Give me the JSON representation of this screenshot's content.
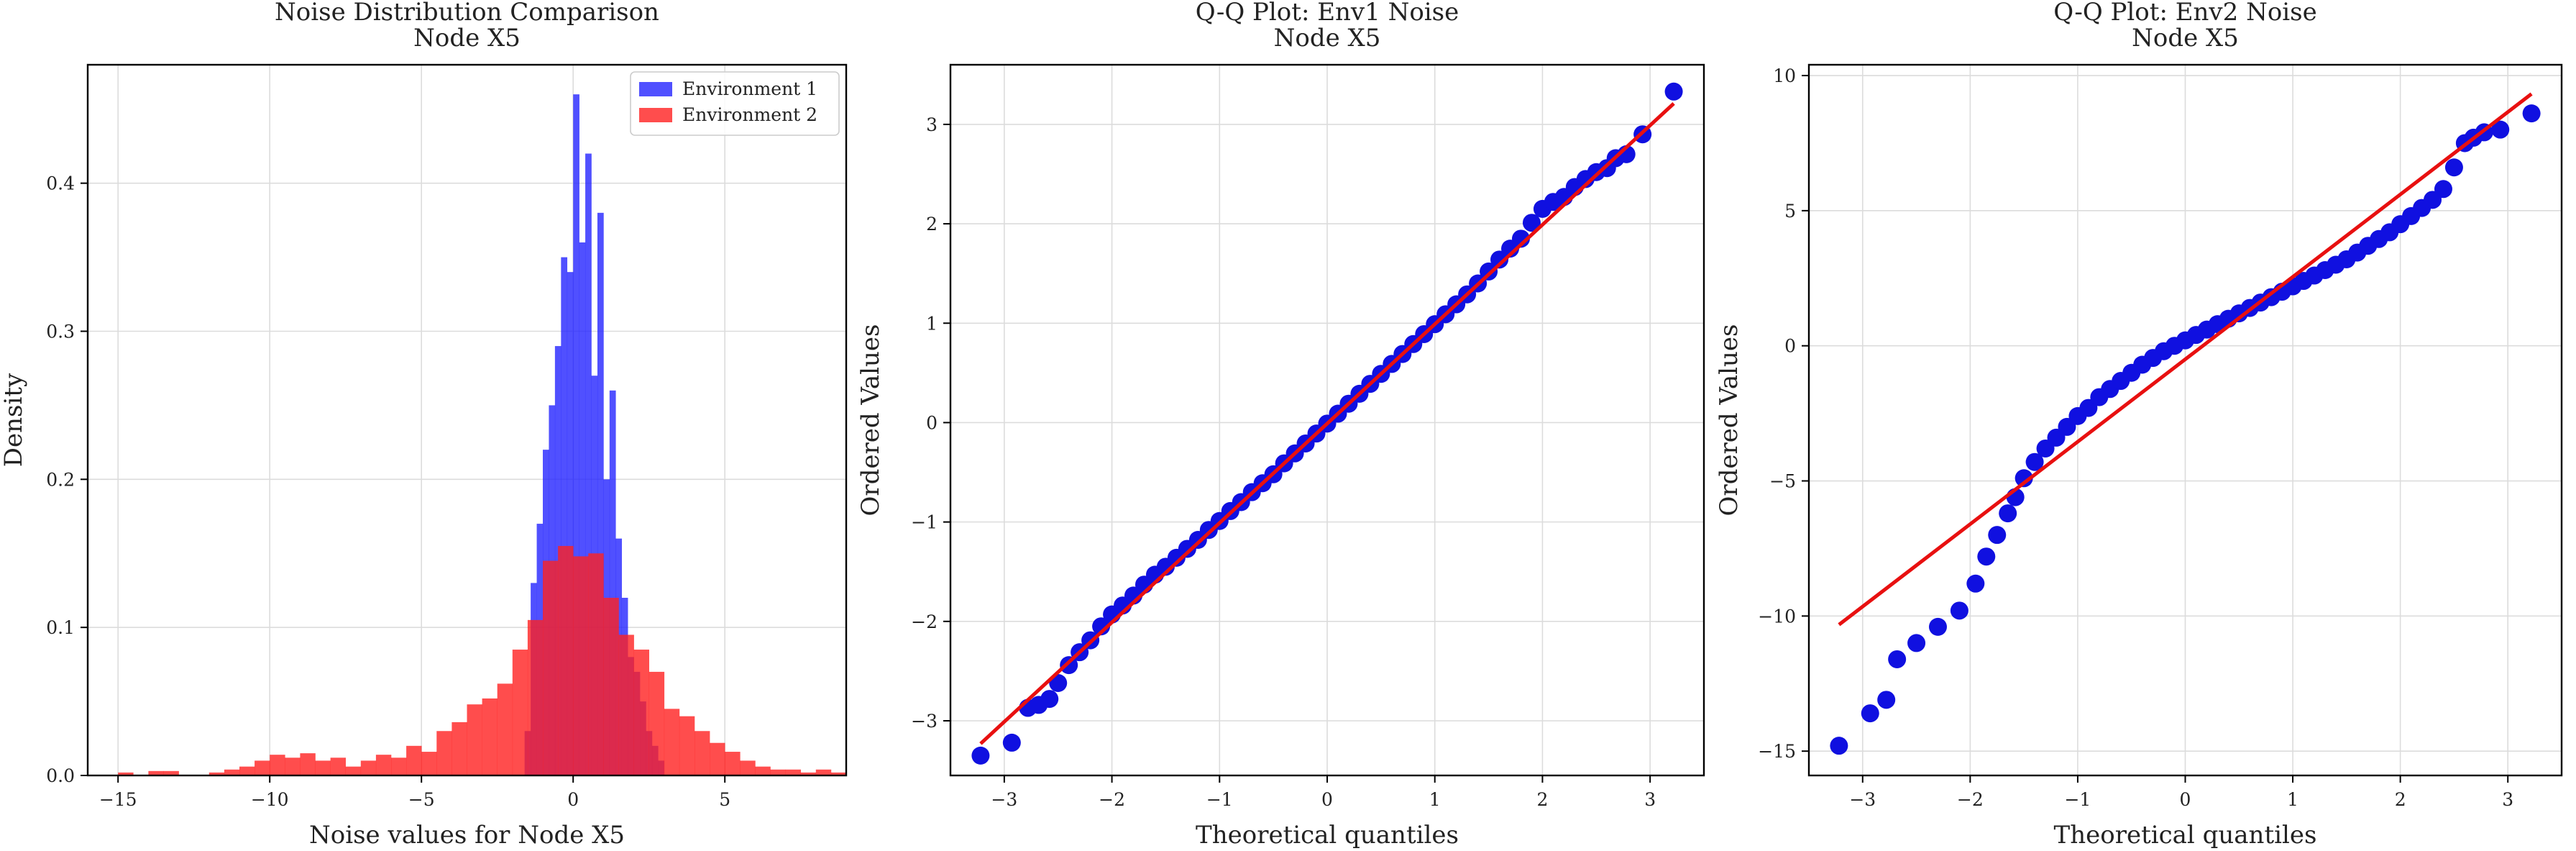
{
  "chart_data": [
    {
      "type": "bar",
      "title": "Noise Distribution Comparison\nNode X5",
      "xlabel": "Noise values for Node X5",
      "ylabel": "Density",
      "xlim": [
        -16,
        9
      ],
      "ylim": [
        0,
        0.48
      ],
      "xticks": [
        -15,
        -10,
        -5,
        0,
        5
      ],
      "yticks": [
        0.0,
        0.1,
        0.2,
        0.3,
        0.4
      ],
      "grid": true,
      "legend_position": "upper-right",
      "series": [
        {
          "name": "Environment 1",
          "color": "#2424ff",
          "bin_edges": [
            -1.6,
            -1.4,
            -1.2,
            -1.0,
            -0.8,
            -0.6,
            -0.4,
            -0.2,
            0.0,
            0.2,
            0.4,
            0.6,
            0.8,
            1.0,
            1.2,
            1.4,
            1.6,
            1.8,
            2.0,
            2.2,
            2.4,
            2.6,
            2.8,
            3.0
          ],
          "values": [
            0.03,
            0.13,
            0.17,
            0.22,
            0.25,
            0.29,
            0.35,
            0.34,
            0.46,
            0.36,
            0.42,
            0.27,
            0.38,
            0.2,
            0.26,
            0.16,
            0.12,
            0.08,
            0.07,
            0.05,
            0.03,
            0.02,
            0.01
          ]
        },
        {
          "name": "Environment 2",
          "color": "#ff2020",
          "bin_edges": [
            -15.0,
            -14.5,
            -14.0,
            -13.5,
            -13.0,
            -12.5,
            -12.0,
            -11.5,
            -11.0,
            -10.5,
            -10.0,
            -9.5,
            -9.0,
            -8.5,
            -8.0,
            -7.5,
            -7.0,
            -6.5,
            -6.0,
            -5.5,
            -5.0,
            -4.5,
            -4.0,
            -3.5,
            -3.0,
            -2.5,
            -2.0,
            -1.5,
            -1.0,
            -0.5,
            0.0,
            0.5,
            1.0,
            1.5,
            2.0,
            2.5,
            3.0,
            3.5,
            4.0,
            4.5,
            5.0,
            5.5,
            6.0,
            6.5,
            7.0,
            7.5,
            8.0,
            8.5
          ],
          "values": [
            0.002,
            0.0,
            0.003,
            0.003,
            0.0,
            0.0,
            0.002,
            0.004,
            0.006,
            0.01,
            0.014,
            0.012,
            0.015,
            0.01,
            0.012,
            0.006,
            0.01,
            0.014,
            0.012,
            0.02,
            0.016,
            0.03,
            0.036,
            0.048,
            0.052,
            0.062,
            0.085,
            0.105,
            0.145,
            0.155,
            0.148,
            0.15,
            0.12,
            0.095,
            0.085,
            0.07,
            0.045,
            0.04,
            0.03,
            0.022,
            0.016,
            0.01,
            0.006,
            0.004,
            0.004,
            0.002,
            0.004,
            0.002
          ]
        }
      ]
    },
    {
      "type": "scatter",
      "title": "Q-Q Plot: Env1 Noise\nNode X5",
      "xlabel": "Theoretical quantiles",
      "ylabel": "Ordered Values",
      "xlim": [
        -3.5,
        3.5
      ],
      "ylim": [
        -3.55,
        3.6
      ],
      "xticks": [
        -3,
        -2,
        -1,
        0,
        1,
        2,
        3
      ],
      "yticks": [
        -3,
        -2,
        -1,
        0,
        1,
        2,
        3
      ],
      "grid": true,
      "point_color": "#1010e0",
      "fit_line": {
        "color": "#e81010",
        "slope": 1.0,
        "intercept": -0.01
      },
      "points": {
        "x": [
          -3.22,
          -2.93,
          -2.78,
          -2.68,
          -2.58,
          -2.5,
          -2.4,
          -2.3,
          -2.2,
          -2.1,
          -2.0,
          -1.9,
          -1.8,
          -1.7,
          -1.6,
          -1.5,
          -1.4,
          -1.3,
          -1.2,
          -1.1,
          -1.0,
          -0.9,
          -0.8,
          -0.7,
          -0.6,
          -0.5,
          -0.4,
          -0.3,
          -0.2,
          -0.1,
          0.0,
          0.1,
          0.2,
          0.3,
          0.4,
          0.5,
          0.6,
          0.7,
          0.8,
          0.9,
          1.0,
          1.1,
          1.2,
          1.3,
          1.4,
          1.5,
          1.6,
          1.7,
          1.8,
          1.9,
          2.0,
          2.1,
          2.2,
          2.3,
          2.4,
          2.5,
          2.6,
          2.68,
          2.78,
          2.93,
          3.22
        ],
        "y": [
          -3.35,
          -3.22,
          -2.87,
          -2.84,
          -2.78,
          -2.62,
          -2.44,
          -2.31,
          -2.19,
          -2.05,
          -1.93,
          -1.84,
          -1.74,
          -1.63,
          -1.53,
          -1.45,
          -1.36,
          -1.27,
          -1.18,
          -1.08,
          -0.99,
          -0.89,
          -0.8,
          -0.7,
          -0.61,
          -0.52,
          -0.41,
          -0.31,
          -0.21,
          -0.11,
          -0.01,
          0.09,
          0.19,
          0.29,
          0.39,
          0.49,
          0.59,
          0.69,
          0.79,
          0.89,
          0.99,
          1.09,
          1.19,
          1.29,
          1.4,
          1.52,
          1.64,
          1.75,
          1.85,
          2.01,
          2.15,
          2.22,
          2.27,
          2.37,
          2.45,
          2.52,
          2.56,
          2.66,
          2.7,
          2.9,
          3.33
        ]
      }
    },
    {
      "type": "scatter",
      "title": "Q-Q Plot: Env2 Noise\nNode X5",
      "xlabel": "Theoretical quantiles",
      "ylabel": "Ordered Values",
      "xlim": [
        -3.5,
        3.5
      ],
      "ylim": [
        -15.9,
        10.4
      ],
      "xticks": [
        -3,
        -2,
        -1,
        0,
        1,
        2,
        3
      ],
      "yticks": [
        -15,
        -10,
        -5,
        0,
        5,
        10
      ],
      "grid": true,
      "point_color": "#1010e0",
      "fit_line": {
        "color": "#e81010",
        "slope": 3.05,
        "intercept": -0.5
      },
      "points": {
        "x": [
          -3.22,
          -2.93,
          -2.78,
          -2.68,
          -2.5,
          -2.3,
          -2.1,
          -1.95,
          -1.85,
          -1.75,
          -1.65,
          -1.58,
          -1.5,
          -1.4,
          -1.3,
          -1.2,
          -1.1,
          -1.0,
          -0.9,
          -0.8,
          -0.7,
          -0.6,
          -0.5,
          -0.4,
          -0.3,
          -0.2,
          -0.1,
          0.0,
          0.1,
          0.2,
          0.3,
          0.4,
          0.5,
          0.6,
          0.7,
          0.8,
          0.9,
          1.0,
          1.1,
          1.2,
          1.3,
          1.4,
          1.5,
          1.6,
          1.7,
          1.8,
          1.9,
          2.0,
          2.1,
          2.2,
          2.3,
          2.4,
          2.5,
          2.6,
          2.68,
          2.78,
          2.93,
          3.22
        ],
        "y": [
          -14.8,
          -13.6,
          -13.1,
          -11.6,
          -11.0,
          -10.4,
          -9.8,
          -8.8,
          -7.8,
          -7.0,
          -6.2,
          -5.6,
          -4.9,
          -4.3,
          -3.8,
          -3.4,
          -3.0,
          -2.6,
          -2.3,
          -1.9,
          -1.6,
          -1.3,
          -1.0,
          -0.7,
          -0.45,
          -0.2,
          0.0,
          0.2,
          0.4,
          0.6,
          0.8,
          1.0,
          1.2,
          1.4,
          1.6,
          1.8,
          2.0,
          2.2,
          2.4,
          2.6,
          2.8,
          3.0,
          3.2,
          3.45,
          3.7,
          3.95,
          4.2,
          4.5,
          4.8,
          5.1,
          5.4,
          5.8,
          6.6,
          7.5,
          7.7,
          7.9,
          8.0,
          8.6
        ]
      }
    }
  ]
}
